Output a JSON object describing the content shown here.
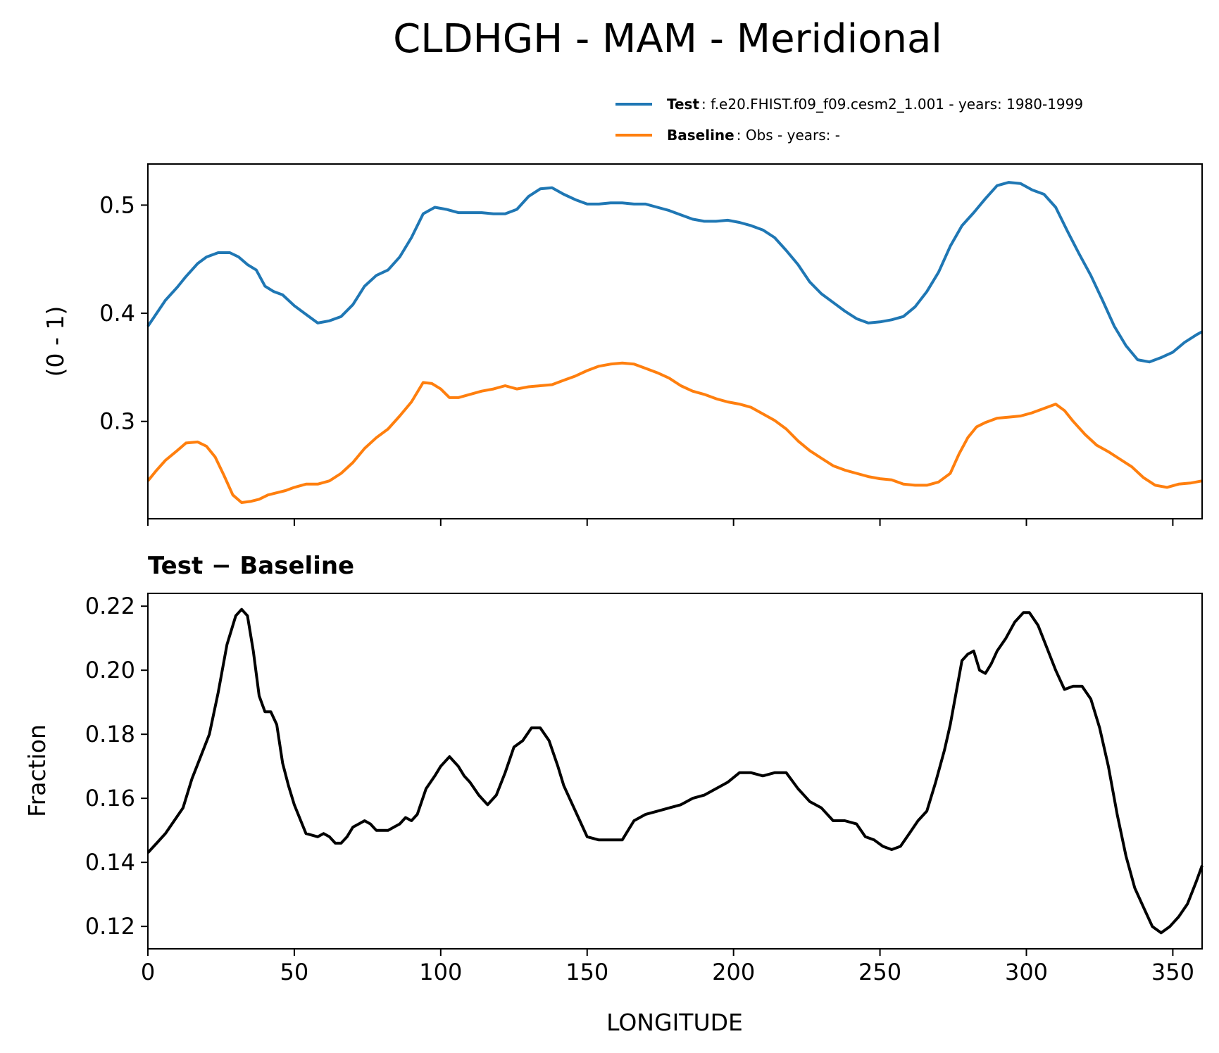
{
  "title": "CLDHGH - MAM - Meridional",
  "legend": [
    {
      "key": "Test",
      "text": ": f.e20.FHIST.f09_f09.cesm2_1.001 - years: 1980-1999",
      "color": "#1f77b4"
    },
    {
      "key": "Baseline",
      "text": ": Obs - years: -",
      "color": "#ff7f0e"
    }
  ],
  "diff_color": "#000000",
  "chart_data": [
    {
      "type": "line",
      "title": "",
      "xlabel": "",
      "ylabel": "(0 - 1)",
      "xlim": [
        0,
        360
      ],
      "ylim": [
        0.21,
        0.538
      ],
      "xticks": [
        0,
        50,
        100,
        150,
        200,
        250,
        300,
        350
      ],
      "xtick_labels_shown": false,
      "yticks": [
        0.3,
        0.4,
        0.5
      ],
      "ytick_labels": [
        "0.3",
        "0.4",
        "0.5"
      ],
      "legend_position": "top-right",
      "series": [
        {
          "name": "Test",
          "color": "#1f77b4",
          "x": [
            0,
            3,
            6,
            10,
            13,
            17,
            20,
            24,
            28,
            31,
            34,
            37,
            40,
            43,
            46,
            50,
            54,
            58,
            62,
            66,
            70,
            74,
            78,
            82,
            86,
            90,
            94,
            98,
            102,
            106,
            110,
            114,
            118,
            122,
            126,
            130,
            134,
            138,
            142,
            146,
            150,
            154,
            158,
            162,
            166,
            170,
            174,
            178,
            182,
            186,
            190,
            194,
            198,
            202,
            206,
            210,
            214,
            218,
            222,
            226,
            230,
            234,
            238,
            242,
            246,
            250,
            254,
            258,
            262,
            266,
            270,
            274,
            278,
            282,
            286,
            290,
            294,
            298,
            302,
            306,
            310,
            314,
            318,
            322,
            326,
            330,
            334,
            338,
            342,
            346,
            350,
            354,
            358,
            360
          ],
          "y": [
            0.388,
            0.4,
            0.412,
            0.424,
            0.434,
            0.446,
            0.452,
            0.456,
            0.456,
            0.452,
            0.445,
            0.44,
            0.425,
            0.42,
            0.417,
            0.407,
            0.399,
            0.391,
            0.393,
            0.397,
            0.408,
            0.425,
            0.435,
            0.44,
            0.452,
            0.47,
            0.492,
            0.498,
            0.496,
            0.493,
            0.493,
            0.493,
            0.492,
            0.492,
            0.496,
            0.508,
            0.515,
            0.516,
            0.51,
            0.505,
            0.501,
            0.501,
            0.502,
            0.502,
            0.501,
            0.501,
            0.498,
            0.495,
            0.491,
            0.487,
            0.485,
            0.485,
            0.486,
            0.484,
            0.481,
            0.477,
            0.47,
            0.458,
            0.445,
            0.429,
            0.418,
            0.41,
            0.402,
            0.395,
            0.391,
            0.392,
            0.394,
            0.397,
            0.406,
            0.42,
            0.438,
            0.462,
            0.481,
            0.493,
            0.506,
            0.518,
            0.521,
            0.52,
            0.514,
            0.51,
            0.498,
            0.476,
            0.455,
            0.435,
            0.412,
            0.388,
            0.37,
            0.357,
            0.355,
            0.359,
            0.364,
            0.373,
            0.38,
            0.383
          ]
        },
        {
          "name": "Baseline",
          "color": "#ff7f0e",
          "x": [
            0,
            3,
            6,
            10,
            13,
            17,
            20,
            23,
            26,
            29,
            32,
            35,
            38,
            41,
            44,
            47,
            50,
            54,
            58,
            62,
            66,
            70,
            74,
            78,
            82,
            86,
            90,
            94,
            97,
            100,
            103,
            106,
            110,
            114,
            118,
            122,
            126,
            130,
            134,
            138,
            142,
            146,
            150,
            154,
            158,
            162,
            166,
            170,
            174,
            178,
            182,
            186,
            190,
            194,
            198,
            202,
            206,
            210,
            214,
            218,
            222,
            226,
            230,
            234,
            238,
            242,
            246,
            250,
            254,
            258,
            262,
            266,
            270,
            274,
            277,
            280,
            283,
            286,
            290,
            294,
            298,
            302,
            306,
            310,
            313,
            316,
            320,
            324,
            328,
            332,
            336,
            340,
            344,
            348,
            352,
            356,
            360
          ],
          "y": [
            0.245,
            0.255,
            0.264,
            0.273,
            0.28,
            0.281,
            0.277,
            0.267,
            0.25,
            0.232,
            0.225,
            0.226,
            0.228,
            0.232,
            0.234,
            0.236,
            0.239,
            0.242,
            0.242,
            0.245,
            0.252,
            0.262,
            0.275,
            0.285,
            0.293,
            0.305,
            0.318,
            0.336,
            0.335,
            0.33,
            0.322,
            0.322,
            0.325,
            0.328,
            0.33,
            0.333,
            0.33,
            0.332,
            0.333,
            0.334,
            0.338,
            0.342,
            0.347,
            0.351,
            0.353,
            0.354,
            0.353,
            0.349,
            0.345,
            0.34,
            0.333,
            0.328,
            0.325,
            0.321,
            0.318,
            0.316,
            0.313,
            0.307,
            0.301,
            0.293,
            0.282,
            0.273,
            0.266,
            0.259,
            0.255,
            0.252,
            0.249,
            0.247,
            0.246,
            0.242,
            0.241,
            0.241,
            0.244,
            0.252,
            0.27,
            0.285,
            0.295,
            0.299,
            0.303,
            0.304,
            0.305,
            0.308,
            0.312,
            0.316,
            0.31,
            0.3,
            0.288,
            0.278,
            0.272,
            0.265,
            0.258,
            0.248,
            0.241,
            0.239,
            0.242,
            0.243,
            0.245
          ]
        }
      ]
    },
    {
      "type": "line",
      "title": "Test − Baseline",
      "xlabel": "LONGITUDE",
      "ylabel": "Fraction",
      "xlim": [
        0,
        360
      ],
      "ylim": [
        0.113,
        0.224
      ],
      "xticks": [
        0,
        50,
        100,
        150,
        200,
        250,
        300,
        350
      ],
      "xtick_labels": [
        "0",
        "50",
        "100",
        "150",
        "200",
        "250",
        "300",
        "350"
      ],
      "yticks": [
        0.12,
        0.14,
        0.16,
        0.18,
        0.2,
        0.22
      ],
      "ytick_labels": [
        "0.12",
        "0.14",
        "0.16",
        "0.18",
        "0.20",
        "0.22"
      ],
      "series": [
        {
          "color": "#000000",
          "x": [
            0,
            3,
            6,
            9,
            12,
            15,
            18,
            21,
            24,
            27,
            30,
            32,
            34,
            36,
            38,
            40,
            42,
            44,
            46,
            48,
            50,
            54,
            58,
            60,
            62,
            64,
            66,
            68,
            70,
            72,
            74,
            76,
            78,
            80,
            82,
            84,
            86,
            88,
            90,
            92,
            95,
            98,
            100,
            103,
            106,
            108,
            110,
            113,
            116,
            119,
            122,
            125,
            128,
            131,
            134,
            137,
            140,
            142,
            144,
            147,
            150,
            154,
            158,
            162,
            166,
            170,
            174,
            178,
            182,
            186,
            190,
            194,
            198,
            202,
            206,
            210,
            214,
            218,
            222,
            226,
            230,
            234,
            238,
            242,
            245,
            248,
            251,
            254,
            257,
            260,
            263,
            266,
            269,
            272,
            274,
            276,
            278,
            280,
            282,
            284,
            286,
            288,
            290,
            293,
            296,
            299,
            301,
            304,
            307,
            310,
            313,
            316,
            319,
            322,
            325,
            328,
            331,
            334,
            337,
            340,
            343,
            346,
            349,
            352,
            355,
            358,
            360
          ],
          "y": [
            0.143,
            0.146,
            0.149,
            0.153,
            0.157,
            0.166,
            0.173,
            0.18,
            0.193,
            0.208,
            0.217,
            0.219,
            0.217,
            0.206,
            0.192,
            0.187,
            0.187,
            0.183,
            0.171,
            0.164,
            0.158,
            0.149,
            0.148,
            0.149,
            0.148,
            0.146,
            0.146,
            0.148,
            0.151,
            0.152,
            0.153,
            0.152,
            0.15,
            0.15,
            0.15,
            0.151,
            0.152,
            0.154,
            0.153,
            0.155,
            0.163,
            0.167,
            0.17,
            0.173,
            0.17,
            0.167,
            0.165,
            0.161,
            0.158,
            0.161,
            0.168,
            0.176,
            0.178,
            0.182,
            0.182,
            0.178,
            0.17,
            0.164,
            0.16,
            0.154,
            0.148,
            0.147,
            0.147,
            0.147,
            0.153,
            0.155,
            0.156,
            0.157,
            0.158,
            0.16,
            0.161,
            0.163,
            0.165,
            0.168,
            0.168,
            0.167,
            0.168,
            0.168,
            0.163,
            0.159,
            0.157,
            0.153,
            0.153,
            0.152,
            0.148,
            0.147,
            0.145,
            0.144,
            0.145,
            0.149,
            0.153,
            0.156,
            0.165,
            0.175,
            0.183,
            0.193,
            0.203,
            0.205,
            0.206,
            0.2,
            0.199,
            0.202,
            0.206,
            0.21,
            0.215,
            0.218,
            0.218,
            0.214,
            0.207,
            0.2,
            0.194,
            0.195,
            0.195,
            0.191,
            0.182,
            0.17,
            0.155,
            0.142,
            0.132,
            0.126,
            0.12,
            0.118,
            0.12,
            0.123,
            0.127,
            0.134,
            0.139
          ]
        }
      ]
    }
  ]
}
